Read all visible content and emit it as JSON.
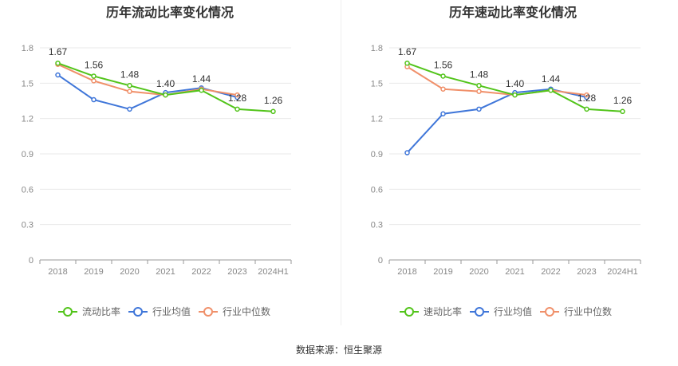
{
  "colors": {
    "primary": "#52c41a",
    "industry_avg": "#3f76d9",
    "industry_median": "#f0906a"
  },
  "source_text": "数据来源：恒生聚源",
  "chart_data": [
    {
      "type": "line",
      "title": "历年流动比率变化情况",
      "categories": [
        "2018",
        "2019",
        "2020",
        "2021",
        "2022",
        "2023",
        "2024H1"
      ],
      "yticks": [
        "0",
        "0.3",
        "0.6",
        "0.9",
        "1.2",
        "1.5",
        "1.8"
      ],
      "ylim": [
        0,
        1.8
      ],
      "grid": true,
      "legend_position": "bottom",
      "series": [
        {
          "name": "流动比率",
          "values": [
            1.67,
            1.56,
            1.48,
            1.4,
            1.44,
            1.28,
            1.26
          ],
          "labels": [
            "1.67",
            "1.56",
            "1.48",
            "1.40",
            "1.44",
            "1.28",
            "1.26"
          ]
        },
        {
          "name": "行业均值",
          "values": [
            1.57,
            1.36,
            1.28,
            1.42,
            1.46,
            1.38,
            null
          ]
        },
        {
          "name": "行业中位数",
          "values": [
            1.66,
            1.52,
            1.43,
            1.4,
            1.45,
            1.4,
            null
          ]
        }
      ]
    },
    {
      "type": "line",
      "title": "历年速动比率变化情况",
      "categories": [
        "2018",
        "2019",
        "2020",
        "2021",
        "2022",
        "2023",
        "2024H1"
      ],
      "yticks": [
        "0",
        "0.3",
        "0.6",
        "0.9",
        "1.2",
        "1.5",
        "1.8"
      ],
      "ylim": [
        0,
        1.8
      ],
      "grid": true,
      "legend_position": "bottom",
      "series": [
        {
          "name": "速动比率",
          "values": [
            1.67,
            1.56,
            1.48,
            1.4,
            1.44,
            1.28,
            1.26
          ],
          "labels": [
            "1.67",
            "1.56",
            "1.48",
            "1.40",
            "1.44",
            "1.28",
            "1.26"
          ]
        },
        {
          "name": "行业均值",
          "values": [
            0.91,
            1.24,
            1.28,
            1.42,
            1.45,
            1.38,
            null
          ]
        },
        {
          "name": "行业中位数",
          "values": [
            1.64,
            1.45,
            1.43,
            1.4,
            1.44,
            1.4,
            null
          ]
        }
      ]
    }
  ]
}
